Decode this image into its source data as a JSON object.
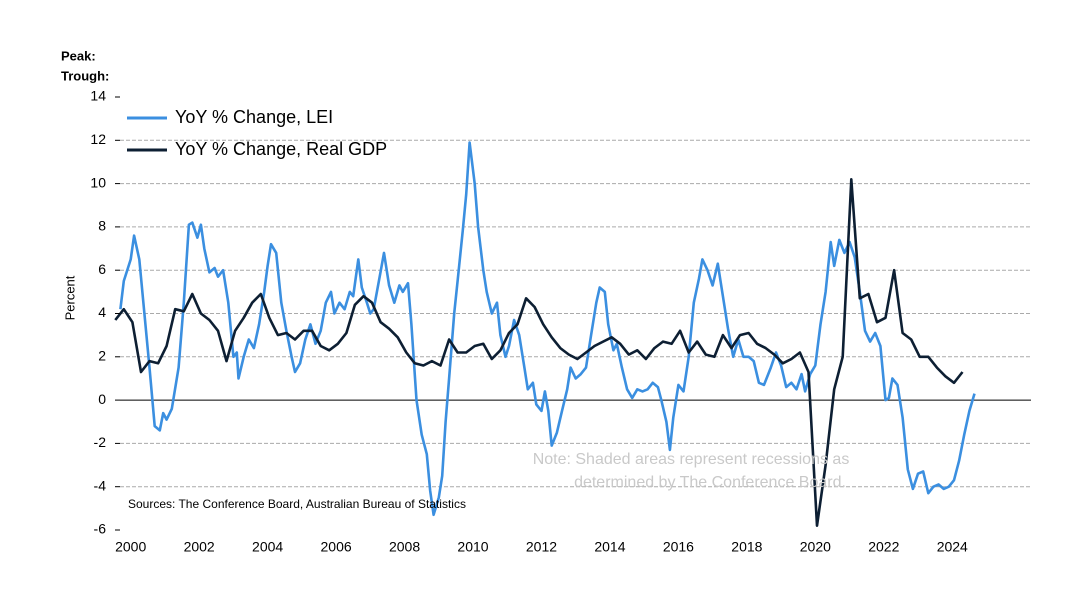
{
  "chart_data": {
    "type": "line",
    "peak_label": "Peak:",
    "trough_label": "Trough:",
    "y_label": "Percent",
    "note": [
      "Note: Shaded areas represent recessions as",
      "determined by The Conference Board."
    ],
    "source": "Sources: The Conference Board, Australian Bureau of Statistics",
    "xlim": [
      1999.6,
      2026.3
    ],
    "xticks": [
      2000,
      2002,
      2004,
      2006,
      2008,
      2010,
      2012,
      2014,
      2016,
      2018,
      2020,
      2022,
      2024
    ],
    "ylim": [
      -6,
      14
    ],
    "yticks": [
      -6,
      -4,
      -2,
      0,
      2,
      4,
      6,
      8,
      10,
      12,
      14
    ],
    "grid": true,
    "series": [
      {
        "name": "YoY % Change, LEI",
        "color": "#3b8fe0",
        "x": [
          1999.7,
          1999.8,
          2000.0,
          2000.1,
          2000.25,
          2000.4,
          2000.55,
          2000.7,
          2000.85,
          2000.95,
          2001.05,
          2001.2,
          2001.4,
          2001.55,
          2001.7,
          2001.8,
          2001.95,
          2002.05,
          2002.15,
          2002.3,
          2002.45,
          2002.55,
          2002.7,
          2002.85,
          2003.0,
          2003.1,
          2003.15,
          2003.3,
          2003.45,
          2003.6,
          2003.75,
          2003.9,
          2004.0,
          2004.1,
          2004.25,
          2004.4,
          2004.55,
          2004.7,
          2004.8,
          2004.95,
          2005.1,
          2005.25,
          2005.4,
          2005.55,
          2005.7,
          2005.85,
          2005.95,
          2006.1,
          2006.25,
          2006.4,
          2006.5,
          2006.65,
          2006.75,
          2006.9,
          2007.0,
          2007.1,
          2007.25,
          2007.4,
          2007.55,
          2007.7,
          2007.85,
          2007.95,
          2008.1,
          2008.2,
          2008.35,
          2008.5,
          2008.65,
          2008.75,
          2008.85,
          2009.0,
          2009.1,
          2009.2,
          2009.3,
          2009.45,
          2009.55,
          2009.7,
          2009.8,
          2009.9,
          2010.05,
          2010.15,
          2010.3,
          2010.4,
          2010.55,
          2010.7,
          2010.8,
          2010.95,
          2011.05,
          2011.2,
          2011.35,
          2011.5,
          2011.6,
          2011.75,
          2011.85,
          2012.0,
          2012.1,
          2012.2,
          2012.3,
          2012.45,
          2012.6,
          2012.75,
          2012.85,
          2013.0,
          2013.15,
          2013.3,
          2013.45,
          2013.6,
          2013.7,
          2013.85,
          2013.95,
          2014.1,
          2014.2,
          2014.35,
          2014.5,
          2014.65,
          2014.8,
          2014.95,
          2015.1,
          2015.25,
          2015.4,
          2015.5,
          2015.65,
          2015.75,
          2015.85,
          2016.0,
          2016.15,
          2016.3,
          2016.45,
          2016.6,
          2016.7,
          2016.85,
          2017.0,
          2017.15,
          2017.3,
          2017.45,
          2017.6,
          2017.75,
          2017.9,
          2018.05,
          2018.2,
          2018.35,
          2018.5,
          2018.7,
          2018.85,
          2019.0,
          2019.15,
          2019.3,
          2019.45,
          2019.6,
          2019.7,
          2019.85,
          2020.0,
          2020.15,
          2020.3,
          2020.45,
          2020.55,
          2020.7,
          2020.85,
          2021.0,
          2021.15,
          2021.3,
          2021.45,
          2021.6,
          2021.75,
          2021.9,
          2022.05,
          2022.15,
          2022.25,
          2022.4,
          2022.55,
          2022.7,
          2022.85,
          2023.0,
          2023.15,
          2023.3,
          2023.45,
          2023.6,
          2023.75,
          2023.9,
          2024.05,
          2024.2,
          2024.35,
          2024.5,
          2024.65
        ],
        "values": [
          4.2,
          5.5,
          6.5,
          7.6,
          6.5,
          4,
          1.5,
          -1.2,
          -1.4,
          -0.6,
          -0.9,
          -0.4,
          1.5,
          4.5,
          8.1,
          8.2,
          7.5,
          8.1,
          7,
          5.9,
          6.1,
          5.7,
          6,
          4.5,
          2,
          2.2,
          1,
          2,
          2.8,
          2.4,
          3.5,
          5,
          6.2,
          7.2,
          6.8,
          4.5,
          3.2,
          2,
          1.3,
          1.7,
          2.8,
          3.5,
          2.6,
          3.2,
          4.5,
          5,
          4,
          4.5,
          4.2,
          5,
          4.8,
          6.5,
          5.2,
          4.5,
          4,
          4.2,
          5.5,
          6.8,
          5.3,
          4.5,
          5.3,
          5,
          5.4,
          3.5,
          0,
          -1.6,
          -2.5,
          -4.2,
          -5.3,
          -4.5,
          -3.5,
          -1,
          1,
          4,
          5.5,
          7.8,
          9.5,
          11.9,
          10,
          8,
          6,
          5,
          4,
          4.5,
          3,
          2,
          2.5,
          3.7,
          3,
          1.5,
          0.5,
          0.8,
          -0.2,
          -0.5,
          0.4,
          -0.5,
          -2.1,
          -1.5,
          -0.5,
          0.5,
          1.5,
          1,
          1.2,
          1.5,
          3,
          4.5,
          5.2,
          5,
          3.5,
          2.3,
          2.6,
          1.5,
          0.5,
          0.1,
          0.5,
          0.4,
          0.5,
          0.8,
          0.6,
          0,
          -1,
          -2.3,
          -0.8,
          0.7,
          0.4,
          2,
          4.5,
          5.6,
          6.5,
          6,
          5.3,
          6.3,
          4.8,
          3.3,
          2,
          2.8,
          2,
          2,
          1.8,
          0.8,
          0.7,
          1.5,
          2.2,
          1.6,
          0.6,
          0.8,
          0.5,
          1.2,
          0.4,
          1.2,
          1.6,
          3.5,
          5,
          7.3,
          6.2,
          7.4,
          6.8,
          7.3,
          6.6,
          5,
          3.2,
          2.7,
          3.1,
          2.5,
          0,
          0.1,
          1,
          0.7,
          -0.8,
          -3.2,
          -4.1,
          -3.4,
          -3.3,
          -4.3,
          -4,
          -3.9,
          -4.1,
          -4,
          -3.7,
          -2.8,
          -1.6,
          -0.5,
          0.3
        ]
      },
      {
        "name": "YoY % Change, Real GDP",
        "color": "#0d1f33",
        "x": [
          1999.55,
          1999.8,
          2000.05,
          2000.3,
          2000.55,
          2000.8,
          2001.05,
          2001.3,
          2001.55,
          2001.8,
          2002.05,
          2002.3,
          2002.55,
          2002.8,
          2003.05,
          2003.3,
          2003.55,
          2003.8,
          2004.05,
          2004.3,
          2004.55,
          2004.8,
          2005.05,
          2005.3,
          2005.55,
          2005.8,
          2006.05,
          2006.3,
          2006.55,
          2006.8,
          2007.05,
          2007.3,
          2007.55,
          2007.8,
          2008.05,
          2008.3,
          2008.55,
          2008.8,
          2009.05,
          2009.3,
          2009.55,
          2009.8,
          2010.05,
          2010.3,
          2010.55,
          2010.8,
          2011.05,
          2011.3,
          2011.55,
          2011.8,
          2012.05,
          2012.3,
          2012.55,
          2012.8,
          2013.05,
          2013.3,
          2013.55,
          2013.8,
          2014.05,
          2014.3,
          2014.55,
          2014.8,
          2015.05,
          2015.3,
          2015.55,
          2015.8,
          2016.05,
          2016.3,
          2016.55,
          2016.8,
          2017.05,
          2017.3,
          2017.55,
          2017.8,
          2018.05,
          2018.3,
          2018.55,
          2018.8,
          2019.05,
          2019.3,
          2019.55,
          2019.8,
          2020.05,
          2020.3,
          2020.55,
          2020.8,
          2021.05,
          2021.3,
          2021.55,
          2021.8,
          2022.05,
          2022.3,
          2022.55,
          2022.8,
          2023.05,
          2023.3,
          2023.55,
          2023.8,
          2024.05,
          2024.3
        ],
        "values": [
          3.7,
          4.2,
          3.6,
          1.3,
          1.8,
          1.7,
          2.5,
          4.2,
          4.1,
          4.9,
          4.0,
          3.7,
          3.2,
          1.8,
          3.2,
          3.8,
          4.5,
          4.9,
          3.8,
          3.0,
          3.1,
          2.8,
          3.2,
          3.2,
          2.5,
          2.3,
          2.6,
          3.1,
          4.4,
          4.8,
          4.5,
          3.6,
          3.3,
          2.9,
          2.2,
          1.7,
          1.6,
          1.8,
          1.6,
          2.8,
          2.2,
          2.2,
          2.5,
          2.6,
          1.9,
          2.3,
          3.1,
          3.5,
          4.7,
          4.3,
          3.5,
          2.9,
          2.4,
          2.1,
          1.9,
          2.2,
          2.5,
          2.7,
          2.9,
          2.6,
          2.1,
          2.3,
          1.9,
          2.4,
          2.7,
          2.6,
          3.2,
          2.2,
          2.7,
          2.1,
          2.0,
          3.0,
          2.4,
          3.0,
          3.1,
          2.6,
          2.4,
          2.1,
          1.7,
          1.9,
          2.2,
          1.3,
          -5.8,
          -3.0,
          0.5,
          2.0,
          10.2,
          4.7,
          4.9,
          3.6,
          3.8,
          6.0,
          3.1,
          2.8,
          2.0,
          2.0,
          1.5,
          1.1,
          0.8,
          1.3
        ]
      }
    ]
  }
}
